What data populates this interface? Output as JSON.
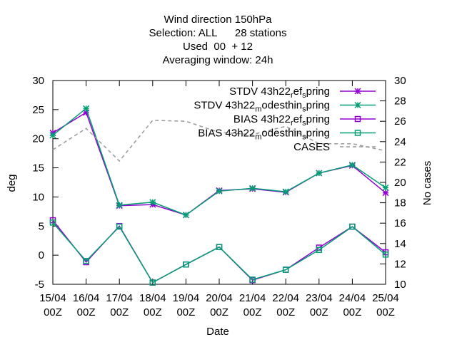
{
  "chart_data": {
    "type": "line",
    "title_lines": [
      "Wind direction 150hPa",
      "Selection: ALL      28 stations",
      "Used  00  + 12",
      "Averaging window: 24h"
    ],
    "xlabel": "Date",
    "ylabel": "deg",
    "y2label": "No cases",
    "categories": [
      [
        "15/04",
        "00Z"
      ],
      [
        "16/04",
        "00Z"
      ],
      [
        "17/04",
        "00Z"
      ],
      [
        "18/04",
        "00Z"
      ],
      [
        "19/04",
        "00Z"
      ],
      [
        "20/04",
        "00Z"
      ],
      [
        "21/04",
        "00Z"
      ],
      [
        "22/04",
        "00Z"
      ],
      [
        "23/04",
        "00Z"
      ],
      [
        "24/04",
        "00Z"
      ],
      [
        "25/04",
        "00Z"
      ]
    ],
    "ylim": [
      -5,
      30
    ],
    "yticks": [
      -5,
      0,
      5,
      10,
      15,
      20,
      25,
      30
    ],
    "y2lim": [
      10,
      30
    ],
    "y2ticks": [
      10,
      12,
      14,
      16,
      18,
      20,
      22,
      24,
      26,
      28,
      30
    ],
    "legend_position": "top-right",
    "series": [
      {
        "name": "STDV 43h22_ref_spring",
        "legend_parts": [
          {
            "t": "STDV 43h22",
            "s": "n"
          },
          {
            "t": "r",
            "s": "sub"
          },
          {
            "t": "ef",
            "s": "n"
          },
          {
            "t": "s",
            "s": "sub"
          },
          {
            "t": "pring",
            "s": "n"
          }
        ],
        "axis": "y",
        "color": "#9400d3",
        "marker": "star",
        "values": [
          21.0,
          24.5,
          8.5,
          8.7,
          6.9,
          11.1,
          11.4,
          10.8,
          14.1,
          15.4,
          10.7
        ]
      },
      {
        "name": "STDV 43h22_modesthin_spring",
        "legend_parts": [
          {
            "t": "STDV 43h22",
            "s": "n"
          },
          {
            "t": "m",
            "s": "sub"
          },
          {
            "t": "odesthin",
            "s": "n"
          },
          {
            "t": "s",
            "s": "sub"
          },
          {
            "t": "pring",
            "s": "n"
          }
        ],
        "axis": "y",
        "color": "#009e73",
        "marker": "star",
        "values": [
          20.6,
          25.2,
          8.6,
          9.1,
          6.9,
          11.0,
          11.5,
          10.9,
          14.1,
          15.5,
          11.6
        ]
      },
      {
        "name": "BIAS 43h22_ref_spring",
        "legend_parts": [
          {
            "t": "BIAS 43h22",
            "s": "n"
          },
          {
            "t": "r",
            "s": "sub"
          },
          {
            "t": "ef",
            "s": "n"
          },
          {
            "t": "s",
            "s": "sub"
          },
          {
            "t": "pring",
            "s": "n"
          }
        ],
        "axis": "y",
        "color": "#9400d3",
        "marker": "square",
        "values": [
          6.0,
          -1.2,
          5.0,
          -4.7,
          -1.6,
          1.4,
          -4.3,
          -2.5,
          1.3,
          4.9,
          0.5
        ]
      },
      {
        "name": "BIAS 43h22_modesthin_spring",
        "legend_parts": [
          {
            "t": "BIAS 43h22",
            "s": "n"
          },
          {
            "t": "m",
            "s": "sub"
          },
          {
            "t": "odesthin",
            "s": "n"
          },
          {
            "t": "s",
            "s": "sub"
          },
          {
            "t": "pring",
            "s": "n"
          }
        ],
        "axis": "y",
        "color": "#009e73",
        "marker": "square",
        "values": [
          5.6,
          -1.0,
          4.9,
          -4.7,
          -1.6,
          1.4,
          -4.2,
          -2.5,
          0.9,
          4.9,
          0.1
        ]
      },
      {
        "name": "CASES",
        "legend_parts": [
          {
            "t": "CASES",
            "s": "n"
          }
        ],
        "axis": "y2",
        "color": "#999999",
        "marker": "none",
        "dashed": true,
        "values": [
          23.2,
          25.3,
          22.1,
          26.1,
          26.0,
          24.9,
          24.7,
          25.5,
          23.8,
          23.8,
          23.1
        ]
      }
    ]
  }
}
